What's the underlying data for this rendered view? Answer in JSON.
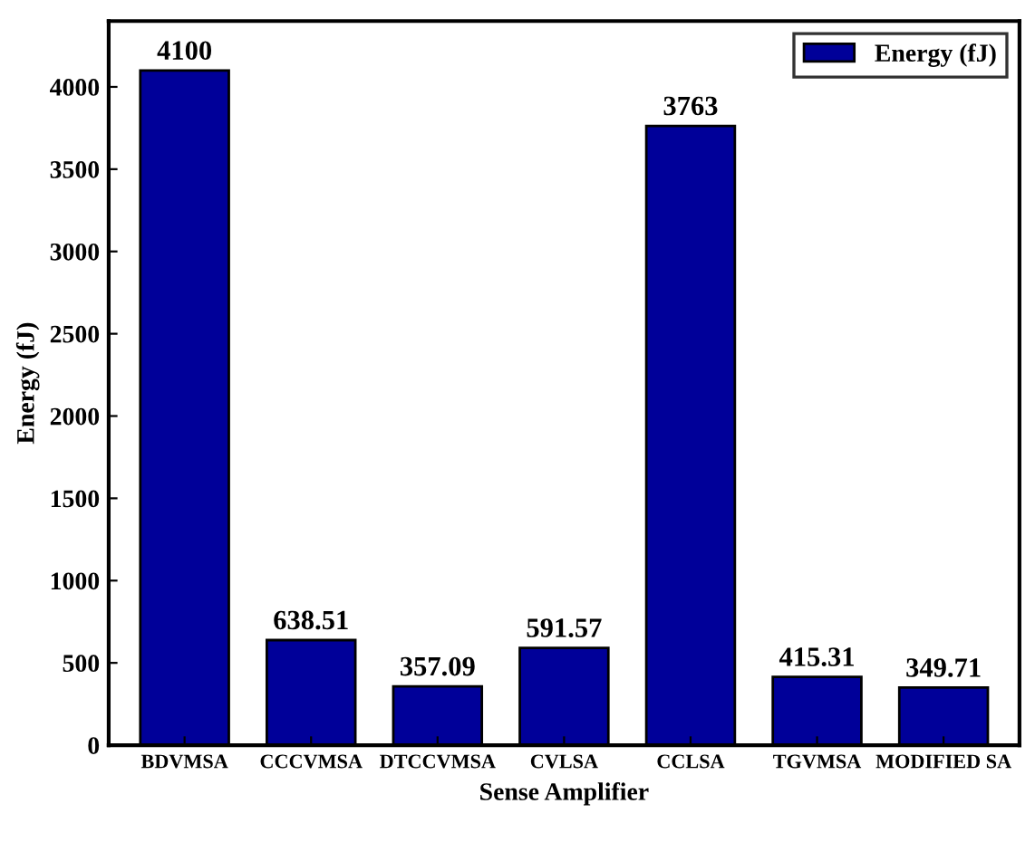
{
  "chart_data": {
    "type": "bar",
    "xlabel": "Sense Amplifier",
    "ylabel": "Energy (fJ)",
    "categories": [
      "BDVMSA",
      "CCCVMSA",
      "DTCCVMSA",
      "CVLSA",
      "CCLSA",
      "TGVMSA",
      "MODIFIED SA"
    ],
    "series": [
      {
        "name": "Energy (fJ)",
        "color": "#000099",
        "values": [
          4100,
          638.51,
          357.09,
          591.57,
          3763,
          415.31,
          349.71
        ]
      }
    ],
    "ylim": [
      0,
      4400
    ],
    "yticks": [
      0,
      500,
      1000,
      1500,
      2000,
      2500,
      3000,
      3500,
      4000
    ],
    "data_labels": true,
    "legend": "top right",
    "grid": false
  }
}
